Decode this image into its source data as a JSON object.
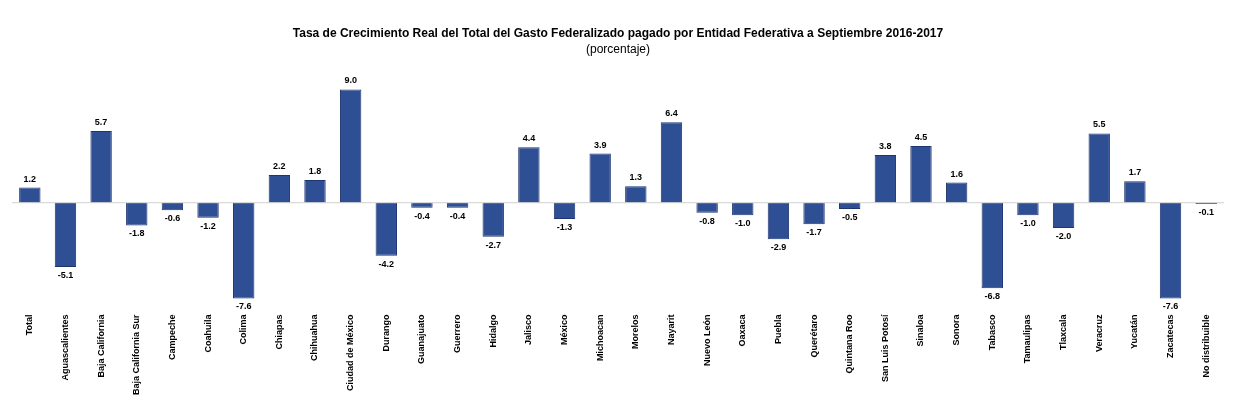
{
  "chart_data": {
    "type": "bar",
    "title": "Tasa de Crecimiento Real del Total del Gasto Federalizado pagado por Entidad Federativa a Septiembre 2016-2017",
    "subtitle": "(porcentaje)",
    "categories": [
      "Total",
      "Aguascalientes",
      "Baja California",
      "Baja California Sur",
      "Campeche",
      "Coahuila",
      "Colima",
      "Chiapas",
      "Chihuahua",
      "Ciudad de México",
      "Durango",
      "Guanajuato",
      "Guerrero",
      "Hidalgo",
      "Jalisco",
      "México",
      "Michoacan",
      "Morelos",
      "Nayarit",
      "Nuevo León",
      "Oaxaca",
      "Puebla",
      "Querétaro",
      "Quintana Roo",
      "San Luis Potosí",
      "Sinaloa",
      "Sonora",
      "Tabasco",
      "Tamaulipas",
      "Tlaxcala",
      "Veracruz",
      "Yucatán",
      "Zacatecas",
      "No distribuible"
    ],
    "values": [
      1.2,
      -5.1,
      5.7,
      -1.8,
      -0.6,
      -1.2,
      -7.6,
      2.2,
      1.8,
      9.0,
      -4.2,
      -0.4,
      -0.4,
      -2.7,
      4.4,
      -1.3,
      3.9,
      1.3,
      6.4,
      -0.8,
      -1.0,
      -2.9,
      -1.7,
      -0.5,
      3.8,
      4.5,
      1.6,
      -6.8,
      -1.0,
      -2.0,
      5.5,
      1.7,
      -7.6,
      -0.1
    ],
    "value_labels": [
      "1.2",
      "-5.1",
      "5.7",
      "-1.8",
      "-0.6",
      "-1.2",
      "-7.6",
      "2.2",
      "1.8",
      "9.0",
      "-4.2",
      "-0.4",
      "-0.4",
      "-2.7",
      "4.4",
      "-1.3",
      "3.9",
      "1.3",
      "6.4",
      "-0.8",
      "-1.0",
      "-2.9",
      "-1.7",
      "-0.5",
      "3.8",
      "4.5",
      "1.6",
      "-6.8",
      "-1.0",
      "-2.0",
      "5.5",
      "1.7",
      "-7.6",
      "-0.1"
    ],
    "color": "#2f4f95",
    "grid": false,
    "legend": false
  }
}
